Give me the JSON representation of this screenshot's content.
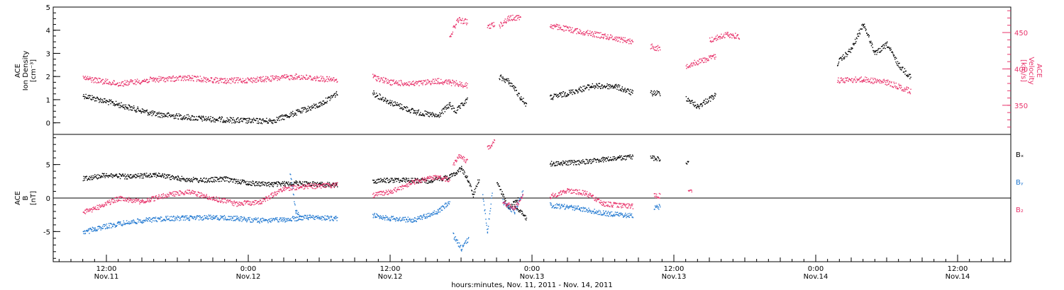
{
  "chart_data": [
    {
      "type": "scatter",
      "panel": "top",
      "ylabel_left": [
        "ACE",
        "Ion Density",
        "[cm⁻³]"
      ],
      "ylabel_right": [
        "ACE",
        "Velocity",
        "[km/s]"
      ],
      "ylim_left": [
        -0.5,
        5.0
      ],
      "yticks_left": [
        "0",
        "1",
        "2",
        "3",
        "4",
        "5"
      ],
      "ylim_right": [
        310,
        485
      ],
      "yticks_right": [
        "350",
        "400",
        "450"
      ],
      "series": [
        {
          "color": "#000000",
          "axis": "left",
          "segments": [
            {
              "x": [
                0,
                6,
                10,
                14,
                16,
                20,
                21.5
              ],
              "y": [
                1.2,
                0.4,
                0.2,
                0.1,
                0.1,
                0.8,
                1.3
              ]
            },
            {
              "x": [
                24.5,
                26,
                28,
                30,
                31,
                31.5,
                32.5
              ],
              "y": [
                1.3,
                0.9,
                0.5,
                0.3,
                0.8,
                0.5,
                1.0
              ]
            },
            {
              "x": [
                35.2,
                36,
                36.5,
                37,
                37.5
              ],
              "y": [
                2.0,
                1.8,
                1.5,
                1.1,
                0.8
              ]
            },
            {
              "x": [
                39.5,
                41,
                43,
                45,
                46.5
              ],
              "y": [
                1.1,
                1.3,
                1.6,
                1.6,
                1.3
              ]
            },
            {
              "x": [
                48,
                48.8
              ],
              "y": [
                1.3,
                1.3
              ]
            },
            {
              "x": [
                51,
                52,
                52.5,
                53.5
              ],
              "y": [
                1.1,
                0.7,
                0.9,
                1.2
              ]
            },
            {
              "x": [
                63.8,
                65,
                66,
                67,
                68,
                69,
                70
              ],
              "y": [
                2.6,
                3.2,
                4.3,
                3.0,
                3.4,
                2.5,
                2.0
              ]
            }
          ]
        },
        {
          "color": "#e8336b",
          "axis": "right",
          "segments": [
            {
              "x": [
                0,
                3,
                6,
                9,
                12,
                15,
                18,
                21.5
              ],
              "y": [
                388,
                380,
                386,
                388,
                384,
                386,
                390,
                385
              ]
            },
            {
              "x": [
                24.5,
                26,
                28,
                30,
                31,
                32.5
              ],
              "y": [
                390,
                382,
                380,
                384,
                382,
                378
              ]
            },
            {
              "x": [
                31,
                31.7,
                32.5
              ],
              "y": [
                445,
                468,
                465
              ]
            },
            {
              "x": [
                34.2,
                34.8
              ],
              "y": [
                458,
                462
              ]
            },
            {
              "x": [
                35.2,
                36,
                37
              ],
              "y": [
                460,
                470,
                472
              ]
            },
            {
              "x": [
                39.5,
                42,
                44,
                46.5
              ],
              "y": [
                460,
                452,
                446,
                438
              ]
            },
            {
              "x": [
                48,
                48.8
              ],
              "y": [
                432,
                428
              ]
            },
            {
              "x": [
                51,
                53.5
              ],
              "y": [
                405,
                418
              ]
            },
            {
              "x": [
                53,
                54.5,
                55.5
              ],
              "y": [
                440,
                448,
                445
              ]
            },
            {
              "x": [
                63.8,
                66,
                68,
                70
              ],
              "y": [
                385,
                386,
                382,
                370
              ]
            }
          ]
        }
      ]
    },
    {
      "type": "scatter",
      "panel": "bottom",
      "ylabel_left": [
        "ACE",
        "B",
        "[nT]"
      ],
      "ylim_left": [
        -9.5,
        9.5
      ],
      "yticks_left": [
        "-5",
        "0",
        "5"
      ],
      "legend": [
        "Bₓ",
        "Bᵧ",
        "B₂"
      ],
      "series": [
        {
          "color": "#000000",
          "segments": [
            {
              "x": [
                0,
                2,
                4,
                6,
                8,
                10,
                12,
                14,
                16,
                18,
                20,
                21.5
              ],
              "y": [
                3,
                3.5,
                3.2,
                3.6,
                3.0,
                2.7,
                2.9,
                2.3,
                2.1,
                2.3,
                2.1,
                2.0
              ]
            },
            {
              "x": [
                24.5,
                27,
                29,
                31,
                32
              ],
              "y": [
                2.6,
                2.8,
                2.6,
                3.2,
                4.5
              ]
            },
            {
              "x": [
                32,
                32.5,
                33,
                33.5
              ],
              "y": [
                4.5,
                3.0,
                0.5,
                3.0
              ]
            },
            {
              "x": [
                35,
                36,
                36.8
              ],
              "y": [
                2.5,
                -1.5,
                0.0
              ]
            },
            {
              "x": [
                36.5,
                37.5
              ],
              "y": [
                -1.0,
                -3.0
              ]
            },
            {
              "x": [
                39.5,
                42,
                44,
                46.5
              ],
              "y": [
                5.2,
                5.4,
                5.8,
                6.2
              ]
            },
            {
              "x": [
                48,
                48.8
              ],
              "y": [
                6.1,
                5.9
              ]
            },
            {
              "x": [
                51,
                51.2
              ],
              "y": [
                5.3,
                5.2
              ]
            }
          ]
        },
        {
          "color": "#1f77d0",
          "segments": [
            {
              "x": [
                0,
                1,
                3,
                5,
                7,
                9,
                11,
                13,
                15,
                17,
                19,
                21.5
              ],
              "y": [
                -5.2,
                -4.5,
                -3.8,
                -3.3,
                -3.0,
                -2.9,
                -2.8,
                -3.0,
                -3.3,
                -3.2,
                -2.8,
                -3.0
              ]
            },
            {
              "x": [
                17.5,
                18,
                18.5
              ],
              "y": [
                4,
                -2,
                -3
              ]
            },
            {
              "x": [
                24.5,
                26,
                28,
                30,
                31
              ],
              "y": [
                -2.5,
                -3.0,
                -3.2,
                -2.0,
                -0.5
              ]
            },
            {
              "x": [
                31.3,
                32,
                32.6
              ],
              "y": [
                -5.5,
                -7.5,
                -6.0
              ]
            },
            {
              "x": [
                33.8,
                34.2,
                34.6
              ],
              "y": [
                0.5,
                -5.0,
                1.0
              ]
            },
            {
              "x": [
                35.5,
                36.5,
                37.2
              ],
              "y": [
                -0.5,
                -2.0,
                1.0
              ]
            },
            {
              "x": [
                39.5,
                42,
                44,
                46.5
              ],
              "y": [
                -1.0,
                -1.5,
                -2.2,
                -2.6
              ]
            },
            {
              "x": [
                48.3,
                48.8
              ],
              "y": [
                -1.5,
                -1.2
              ]
            }
          ]
        },
        {
          "color": "#e8336b",
          "segments": [
            {
              "x": [
                0,
                1,
                3,
                5,
                7,
                9,
                11,
                13,
                15,
                17,
                19,
                21.5
              ],
              "y": [
                -2.0,
                -1.5,
                0.0,
                -0.5,
                0.5,
                1.0,
                0.0,
                -0.8,
                -0.5,
                1.5,
                1.8,
                2.0
              ]
            },
            {
              "x": [
                24.5,
                26,
                28,
                30,
                31
              ],
              "y": [
                0.5,
                1.0,
                2.5,
                3.2,
                2.8
              ]
            },
            {
              "x": [
                31.3,
                31.8,
                32.5
              ],
              "y": [
                5.0,
                6.5,
                5.5
              ]
            },
            {
              "x": [
                34.2,
                34.8
              ],
              "y": [
                7.5,
                8.5
              ]
            },
            {
              "x": [
                35.5,
                36.5,
                37.2
              ],
              "y": [
                -0.5,
                -1.5,
                0.5
              ]
            },
            {
              "x": [
                39.5,
                41,
                42.5,
                44,
                46.5
              ],
              "y": [
                0.3,
                1.2,
                0.8,
                -0.8,
                -1.2
              ]
            },
            {
              "x": [
                48.3,
                48.8
              ],
              "y": [
                0.5,
                0.4
              ]
            },
            {
              "x": [
                51.3
              ],
              "y": [
                1.0
              ]
            }
          ]
        }
      ]
    }
  ],
  "x_axis": {
    "range_hours": [
      -2.5,
      78.5
    ],
    "ticks": [
      {
        "hour": 2,
        "time": "12:00",
        "day": "Nov.11"
      },
      {
        "hour": 14,
        "time": "0:00",
        "day": "Nov.12"
      },
      {
        "hour": 26,
        "time": "12:00",
        "day": "Nov.12"
      },
      {
        "hour": 38,
        "time": "0:00",
        "day": "Nov.13"
      },
      {
        "hour": 50,
        "time": "12:00",
        "day": "Nov.13"
      },
      {
        "hour": 62,
        "time": "0:00",
        "day": "Nov.14"
      },
      {
        "hour": 74,
        "time": "12:00",
        "day": "Nov.14"
      }
    ],
    "title": "hours:minutes, Nov. 11, 2011 - Nov. 14, 2011"
  }
}
